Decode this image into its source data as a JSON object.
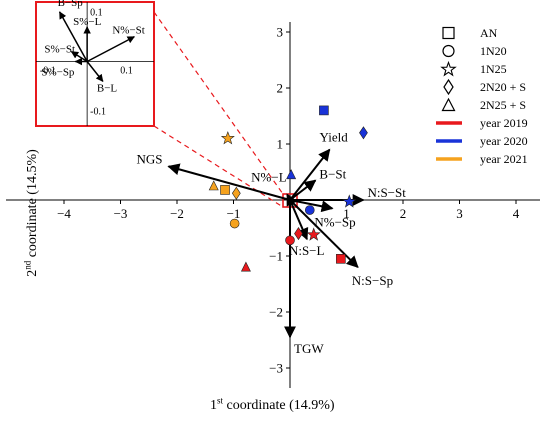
{
  "chart_data": {
    "type": "scatter",
    "title": "",
    "xlabel": "1st coordinate (14.9%)",
    "xlabel_parts": {
      "base": "1",
      "sup": "st",
      "rest": " coordinate (14.9%)"
    },
    "ylabel": "2nd coordinate (14.5%)",
    "ylabel_parts": {
      "base": "2",
      "sup": "nd",
      "rest": " coordinate (14.5%)"
    },
    "xlim": [
      -4.5,
      4.5
    ],
    "ylim": [
      -3.5,
      3.2
    ],
    "x_ticks": [
      -4,
      -3,
      -2,
      -1,
      0,
      1,
      2,
      3,
      4
    ],
    "y_ticks": [
      -3,
      -2,
      -1,
      0,
      1,
      2,
      3
    ],
    "x_tick_labels": [
      "−4",
      "−3",
      "−2",
      "−1",
      "0",
      "1",
      "2",
      "3",
      "4"
    ],
    "y_tick_labels": [
      "−3",
      "−2",
      "−1",
      "0",
      "1",
      "2",
      "3"
    ],
    "legend_position": "right",
    "colors": {
      "year 2019": "#e8191d",
      "year 2020": "#1933d8",
      "year 2021": "#f5a21e"
    },
    "legend": {
      "symbols": [
        {
          "marker": "square",
          "label": "AN"
        },
        {
          "marker": "circle",
          "label": "1N20"
        },
        {
          "marker": "star",
          "label": "1N25"
        },
        {
          "marker": "diamond",
          "label": "2N20 + S"
        },
        {
          "marker": "triangle",
          "label": "2N25 + S"
        }
      ],
      "years": [
        {
          "label": "year 2019",
          "color": "#e8191d"
        },
        {
          "label": "year 2020",
          "color": "#1933d8"
        },
        {
          "label": "year 2021",
          "color": "#f5a21e"
        }
      ]
    },
    "vectors": [
      {
        "label": "NGS",
        "x": -2.15,
        "y": 0.6
      },
      {
        "label": "Yield",
        "x": 0.7,
        "y": 0.9
      },
      {
        "label": "B−St",
        "x": 0.45,
        "y": 0.35
      },
      {
        "label": "N:S−St",
        "x": 1.3,
        "y": 0.0
      },
      {
        "label": "N%−L",
        "x": -0.05,
        "y": 0.1
      },
      {
        "label": "N%−Sp",
        "x": 0.75,
        "y": -0.15
      },
      {
        "label": "N:S−L",
        "x": 0.3,
        "y": -0.7
      },
      {
        "label": "N:S−Sp",
        "x": 1.2,
        "y": -1.2
      },
      {
        "label": "TGW",
        "x": 0.0,
        "y": -2.45
      }
    ],
    "points": [
      {
        "treatment": "AN",
        "marker": "square",
        "year": "year 2019",
        "x": 0.9,
        "y": -1.05
      },
      {
        "treatment": "AN",
        "marker": "square",
        "year": "year 2020",
        "x": 0.6,
        "y": 1.6
      },
      {
        "treatment": "AN",
        "marker": "square",
        "year": "year 2021",
        "x": -1.15,
        "y": 0.18
      },
      {
        "treatment": "1N20",
        "marker": "circle",
        "year": "year 2019",
        "x": 0.0,
        "y": -0.72
      },
      {
        "treatment": "1N20",
        "marker": "circle",
        "year": "year 2020",
        "x": 0.35,
        "y": -0.18
      },
      {
        "treatment": "1N20",
        "marker": "circle",
        "year": "year 2021",
        "x": -0.98,
        "y": -0.42
      },
      {
        "treatment": "1N25",
        "marker": "star",
        "year": "year 2019",
        "x": 0.42,
        "y": -0.62
      },
      {
        "treatment": "1N25",
        "marker": "star",
        "year": "year 2020",
        "x": 1.05,
        "y": -0.03
      },
      {
        "treatment": "1N25",
        "marker": "star",
        "year": "year 2021",
        "x": -1.1,
        "y": 1.1
      },
      {
        "treatment": "2N20 + S",
        "marker": "diamond",
        "year": "year 2019",
        "x": 0.15,
        "y": -0.6
      },
      {
        "treatment": "2N20 + S",
        "marker": "diamond",
        "year": "year 2020",
        "x": 1.3,
        "y": 1.2
      },
      {
        "treatment": "2N20 + S",
        "marker": "diamond",
        "year": "year 2021",
        "x": -0.95,
        "y": 0.12
      },
      {
        "treatment": "2N25 + S",
        "marker": "triangle",
        "year": "year 2019",
        "x": -0.78,
        "y": -1.2
      },
      {
        "treatment": "2N25 + S",
        "marker": "triangle",
        "year": "year 2020",
        "x": 0.02,
        "y": 0.45
      },
      {
        "treatment": "2N25 + S",
        "marker": "triangle",
        "year": "year 2021",
        "x": -1.35,
        "y": 0.25
      }
    ],
    "inset": {
      "xlim": [
        -0.13,
        0.17
      ],
      "ylim": [
        -0.13,
        0.12
      ],
      "x_ticks": [
        -0.1,
        0.1
      ],
      "y_ticks": [
        0.1,
        -0.1
      ],
      "x_tick_labels": [
        "-0.1",
        "0.1"
      ],
      "y_tick_labels": [
        "0.1",
        "-0.1"
      ],
      "vectors": [
        {
          "label": "B−Sp",
          "x": -0.07,
          "y": 0.1
        },
        {
          "label": "S%−L",
          "x": 0.0,
          "y": 0.07
        },
        {
          "label": "N%−St",
          "x": 0.12,
          "y": 0.05
        },
        {
          "label": "S%−St",
          "x": -0.04,
          "y": 0.02
        },
        {
          "label": "S%−Sp",
          "x": -0.03,
          "y": 0.0
        },
        {
          "label": "B−L",
          "x": 0.04,
          "y": -0.04
        }
      ]
    }
  }
}
